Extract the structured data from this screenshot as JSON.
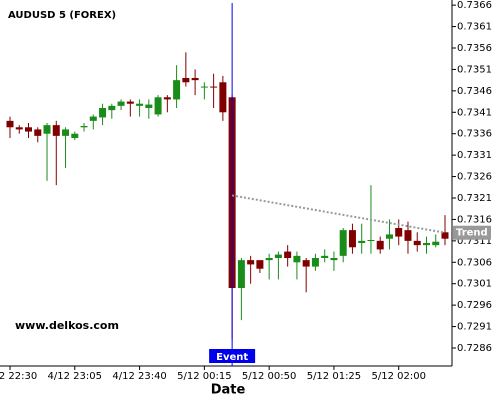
{
  "chart_data": {
    "type": "candlestick",
    "title": "AUDUSD 5 (FOREX)",
    "x_label": "Date",
    "watermark": "www.delkos.com",
    "categories": [
      "4/12 22:30",
      null,
      null,
      null,
      null,
      null,
      null,
      "4/12 23:05",
      null,
      null,
      null,
      null,
      null,
      null,
      "4/12 23:40",
      null,
      null,
      null,
      null,
      null,
      null,
      "5/12 00:15",
      null,
      null,
      null,
      null,
      null,
      null,
      "5/12 00:50",
      null,
      null,
      null,
      null,
      null,
      null,
      "5/12 01:25",
      null,
      null,
      null,
      null,
      null,
      null,
      "5/12 02:00",
      null,
      null,
      null,
      null,
      null
    ],
    "open": [
      0.7339,
      0.73375,
      0.73375,
      0.7337,
      0.7336,
      0.7338,
      0.73355,
      0.7335,
      0.73375,
      0.7339,
      0.73398,
      0.73415,
      0.73425,
      0.73435,
      0.73425,
      0.7342,
      0.73405,
      0.73445,
      0.7344,
      0.7349,
      0.7349,
      0.7347,
      0.7347,
      0.7348,
      0.73445,
      0.73,
      0.73065,
      0.73065,
      0.73065,
      0.7307,
      0.73085,
      0.7306,
      0.73065,
      0.7305,
      0.7307,
      0.73065,
      0.73075,
      0.73135,
      0.73105,
      0.7311,
      0.7311,
      0.73115,
      0.7314,
      0.73135,
      0.7311,
      0.731,
      0.731,
      0.7313
    ],
    "high": [
      0.734,
      0.7338,
      0.73385,
      0.73375,
      0.73385,
      0.7339,
      0.73375,
      0.73365,
      0.73385,
      0.73405,
      0.7343,
      0.7343,
      0.7344,
      0.7344,
      0.7344,
      0.7344,
      0.7345,
      0.7345,
      0.7352,
      0.7355,
      0.7351,
      0.7348,
      0.735,
      0.73495,
      0.7345,
      0.7307,
      0.73075,
      0.7306,
      0.7308,
      0.73085,
      0.731,
      0.73085,
      0.7307,
      0.7308,
      0.7309,
      0.73085,
      0.7314,
      0.7315,
      0.7315,
      0.7324,
      0.7312,
      0.7316,
      0.7316,
      0.73155,
      0.7313,
      0.7312,
      0.73125,
      0.7317
    ],
    "low": [
      0.7335,
      0.7336,
      0.7335,
      0.7334,
      0.7325,
      0.7324,
      0.7328,
      0.73345,
      0.73365,
      0.7337,
      0.7338,
      0.73395,
      0.73415,
      0.734,
      0.734,
      0.73395,
      0.734,
      0.7341,
      0.7342,
      0.7347,
      0.7345,
      0.7344,
      0.7342,
      0.7339,
      0.7288,
      0.72925,
      0.7301,
      0.73035,
      0.7302,
      0.7302,
      0.7305,
      0.7302,
      0.7299,
      0.7304,
      0.7306,
      0.7304,
      0.7306,
      0.7308,
      0.7308,
      0.7308,
      0.7308,
      0.7309,
      0.731,
      0.7308,
      0.73085,
      0.7308,
      0.73095,
      0.731
    ],
    "close": [
      0.73375,
      0.7337,
      0.73365,
      0.73355,
      0.7338,
      0.73355,
      0.7337,
      0.7336,
      0.73378,
      0.734,
      0.7342,
      0.73425,
      0.73435,
      0.7343,
      0.7343,
      0.73428,
      0.73445,
      0.7344,
      0.73485,
      0.7348,
      0.73485,
      0.7347,
      0.73468,
      0.7341,
      0.73,
      0.73065,
      0.73055,
      0.73045,
      0.7307,
      0.73078,
      0.7307,
      0.73075,
      0.7305,
      0.7307,
      0.73075,
      0.7307,
      0.73135,
      0.73095,
      0.7311,
      0.73112,
      0.7309,
      0.73125,
      0.7312,
      0.7311,
      0.731,
      0.73105,
      0.73108,
      0.73115
    ],
    "up_color": "#1a8c1a",
    "down_color": "#800000",
    "ylim": [
      0.72818,
      0.73672
    ],
    "yticks": [
      0.7366,
      0.7361,
      0.7356,
      0.7351,
      0.7346,
      0.7341,
      0.7336,
      0.7331,
      0.7326,
      0.7321,
      0.7316,
      0.7311,
      0.7306,
      0.7301,
      0.7296,
      0.7291,
      0.7286
    ],
    "event": {
      "label": "Event",
      "at": 24,
      "color": "#0000ee"
    },
    "trend": {
      "label": "Trend",
      "start": [
        24,
        0.73216
      ],
      "end": [
        47,
        0.73129
      ],
      "color": "#999999"
    }
  }
}
